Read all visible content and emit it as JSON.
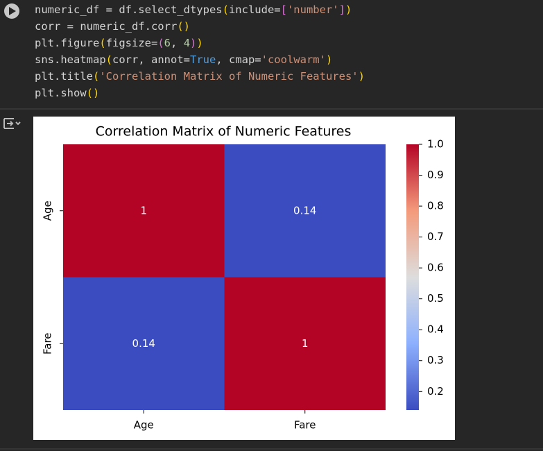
{
  "code": {
    "lines": [
      [
        {
          "text": "numeric_df = df.select_dtypes",
          "color": "#d4d4d4"
        },
        {
          "text": "(",
          "color": "#ffd700"
        },
        {
          "text": "include=",
          "color": "#d4d4d4"
        },
        {
          "text": "[",
          "color": "#da70d6"
        },
        {
          "text": "'number'",
          "color": "#ce9178"
        },
        {
          "text": "]",
          "color": "#da70d6"
        },
        {
          "text": ")",
          "color": "#ffd700"
        }
      ],
      [
        {
          "text": "corr = numeric_df.corr",
          "color": "#d4d4d4"
        },
        {
          "text": "()",
          "color": "#ffd700"
        }
      ],
      [
        {
          "text": "plt.figure",
          "color": "#d4d4d4"
        },
        {
          "text": "(",
          "color": "#ffd700"
        },
        {
          "text": "figsize=",
          "color": "#d4d4d4"
        },
        {
          "text": "(",
          "color": "#da70d6"
        },
        {
          "text": "6",
          "color": "#b5cea8"
        },
        {
          "text": ", ",
          "color": "#d4d4d4"
        },
        {
          "text": "4",
          "color": "#b5cea8"
        },
        {
          "text": ")",
          "color": "#da70d6"
        },
        {
          "text": ")",
          "color": "#ffd700"
        }
      ],
      [
        {
          "text": "sns.heatmap",
          "color": "#d4d4d4"
        },
        {
          "text": "(",
          "color": "#ffd700"
        },
        {
          "text": "corr, annot=",
          "color": "#d4d4d4"
        },
        {
          "text": "True",
          "color": "#569cd6"
        },
        {
          "text": ", cmap=",
          "color": "#d4d4d4"
        },
        {
          "text": "'coolwarm'",
          "color": "#ce9178"
        },
        {
          "text": ")",
          "color": "#ffd700"
        }
      ],
      [
        {
          "text": "plt.title",
          "color": "#d4d4d4"
        },
        {
          "text": "(",
          "color": "#ffd700"
        },
        {
          "text": "'Correlation Matrix of Numeric Features'",
          "color": "#ce9178"
        },
        {
          "text": ")",
          "color": "#ffd700"
        }
      ],
      [
        {
          "text": "plt.show",
          "color": "#d4d4d4"
        },
        {
          "text": "()",
          "color": "#ffd700"
        }
      ]
    ]
  },
  "chart_data": {
    "type": "heatmap",
    "title": "Correlation Matrix of Numeric Features",
    "x_categories": [
      "Age",
      "Fare"
    ],
    "y_categories": [
      "Age",
      "Fare"
    ],
    "values": [
      [
        1,
        0.14
      ],
      [
        0.14,
        1
      ]
    ],
    "value_labels": [
      [
        "1",
        "0.14"
      ],
      [
        "0.14",
        "1"
      ]
    ],
    "colormap": "coolwarm",
    "clim": [
      0.14,
      1
    ],
    "cticks": [
      {
        "value": 1,
        "label": "1.0"
      },
      0.9,
      0.8,
      0.7,
      0.6,
      0.5,
      0.4,
      0.3,
      0.2
    ]
  }
}
